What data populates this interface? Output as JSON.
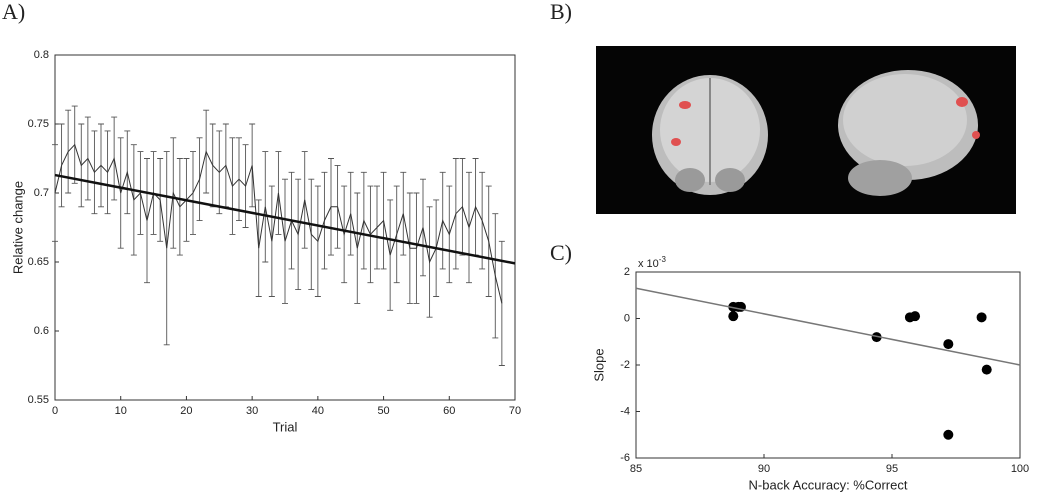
{
  "panel_labels": [
    "A)",
    "B)",
    "C)"
  ],
  "chart_data": [
    {
      "type": "errorline",
      "ylabel": "Relative change",
      "xlabel": "Trial",
      "color": "#333333",
      "xlim": [
        0,
        70
      ],
      "ylim": [
        0.55,
        0.8
      ],
      "xticks": [
        0,
        10,
        20,
        30,
        40,
        50,
        60,
        70
      ],
      "yticks": [
        0.55,
        0.6,
        0.65,
        0.7,
        0.75,
        0.8
      ],
      "x": [
        0,
        1,
        2,
        3,
        4,
        5,
        6,
        7,
        8,
        9,
        10,
        11,
        12,
        13,
        14,
        15,
        16,
        17,
        18,
        19,
        20,
        21,
        22,
        23,
        24,
        25,
        26,
        27,
        28,
        29,
        30,
        31,
        32,
        33,
        34,
        35,
        36,
        37,
        38,
        39,
        40,
        41,
        42,
        43,
        44,
        45,
        46,
        47,
        48,
        49,
        50,
        51,
        52,
        53,
        54,
        55,
        56,
        57,
        58,
        59,
        60,
        61,
        62,
        63,
        64,
        65,
        66,
        67,
        68
      ],
      "values": [
        0.7,
        0.72,
        0.73,
        0.735,
        0.72,
        0.725,
        0.715,
        0.72,
        0.715,
        0.725,
        0.7,
        0.715,
        0.695,
        0.7,
        0.68,
        0.7,
        0.695,
        0.66,
        0.7,
        0.69,
        0.695,
        0.7,
        0.71,
        0.73,
        0.72,
        0.715,
        0.72,
        0.705,
        0.71,
        0.705,
        0.72,
        0.66,
        0.69,
        0.665,
        0.7,
        0.665,
        0.68,
        0.67,
        0.695,
        0.67,
        0.665,
        0.68,
        0.69,
        0.69,
        0.67,
        0.685,
        0.66,
        0.68,
        0.67,
        0.675,
        0.68,
        0.655,
        0.67,
        0.685,
        0.66,
        0.66,
        0.675,
        0.65,
        0.66,
        0.68,
        0.67,
        0.685,
        0.69,
        0.675,
        0.69,
        0.68,
        0.665,
        0.64,
        0.62
      ],
      "errors": [
        0.035,
        0.03,
        0.03,
        0.028,
        0.03,
        0.03,
        0.03,
        0.03,
        0.03,
        0.03,
        0.04,
        0.03,
        0.04,
        0.03,
        0.045,
        0.03,
        0.03,
        0.07,
        0.04,
        0.035,
        0.03,
        0.03,
        0.03,
        0.03,
        0.03,
        0.03,
        0.03,
        0.035,
        0.03,
        0.03,
        0.03,
        0.035,
        0.04,
        0.04,
        0.03,
        0.045,
        0.035,
        0.04,
        0.035,
        0.04,
        0.04,
        0.035,
        0.035,
        0.03,
        0.035,
        0.03,
        0.04,
        0.035,
        0.035,
        0.03,
        0.035,
        0.04,
        0.035,
        0.03,
        0.04,
        0.04,
        0.035,
        0.04,
        0.035,
        0.035,
        0.035,
        0.04,
        0.035,
        0.04,
        0.035,
        0.035,
        0.04,
        0.045,
        0.045
      ],
      "fit": {
        "x": [
          0,
          70
        ],
        "values": [
          0.713,
          0.649
        ]
      }
    },
    {
      "type": "scatter",
      "ylabel": "Slope",
      "xlabel": "N-back Accuracy: %Correct",
      "color": "#000000",
      "multiplier": {
        "base": "x 10",
        "exponent": "-3"
      },
      "xlim": [
        85,
        100
      ],
      "ylim": [
        -6,
        2
      ],
      "xticks": [
        85,
        90,
        95,
        100
      ],
      "yticks": [
        -6,
        -4,
        -2,
        0,
        2
      ],
      "x": [
        88.8,
        88.8,
        89.0,
        89.1,
        94.4,
        95.7,
        95.9,
        97.2,
        97.2,
        98.5,
        98.7
      ],
      "values": [
        0.5,
        0.1,
        0.5,
        0.5,
        -0.8,
        0.05,
        0.1,
        -1.1,
        -5.0,
        0.05,
        -2.2
      ],
      "fit": {
        "x": [
          85,
          100
        ],
        "values": [
          1.3,
          -2.0
        ]
      }
    }
  ]
}
